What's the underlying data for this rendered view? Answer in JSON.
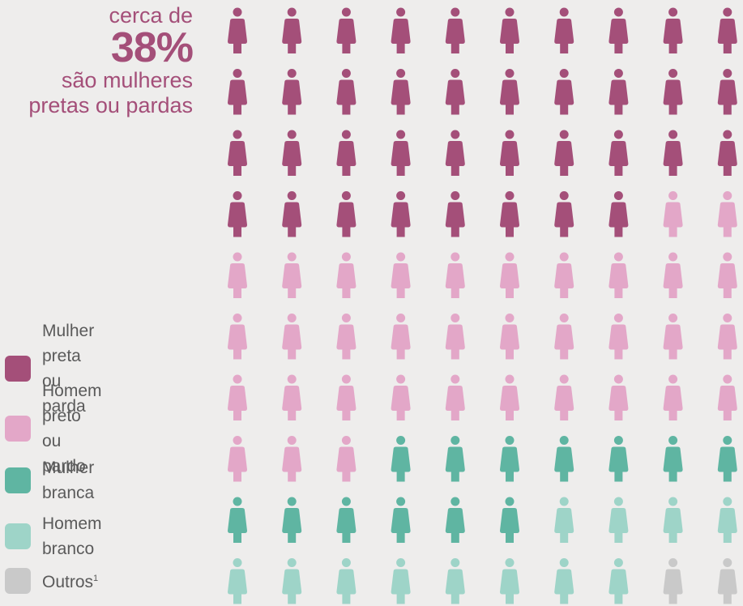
{
  "headline": {
    "pre": "cerca de",
    "big": "38%",
    "post": "são mulheres\npretas ou pardas"
  },
  "legend": [
    {
      "label": "Mulher preta\nou parda",
      "color": "#a44f79"
    },
    {
      "label": "Homem preto\nou pardo",
      "color": "#e3a7c8"
    },
    {
      "label": "Mulher branca",
      "color": "#5fb5a2"
    },
    {
      "label": "Homem branco",
      "color": "#9ed4c8"
    },
    {
      "label": "Outros",
      "sup": "1",
      "color": "#c9c9c9"
    }
  ],
  "chart_data": {
    "type": "pictogram",
    "rows": 10,
    "cols": 10,
    "categories": [
      "Mulher preta ou parda",
      "Homem preto ou pardo",
      "Mulher branca",
      "Homem branco",
      "Outros"
    ],
    "values": [
      38,
      35,
      13,
      12,
      2
    ],
    "colors": [
      "#a44f79",
      "#e3a7c8",
      "#5fb5a2",
      "#9ed4c8",
      "#c9c9c9"
    ]
  }
}
